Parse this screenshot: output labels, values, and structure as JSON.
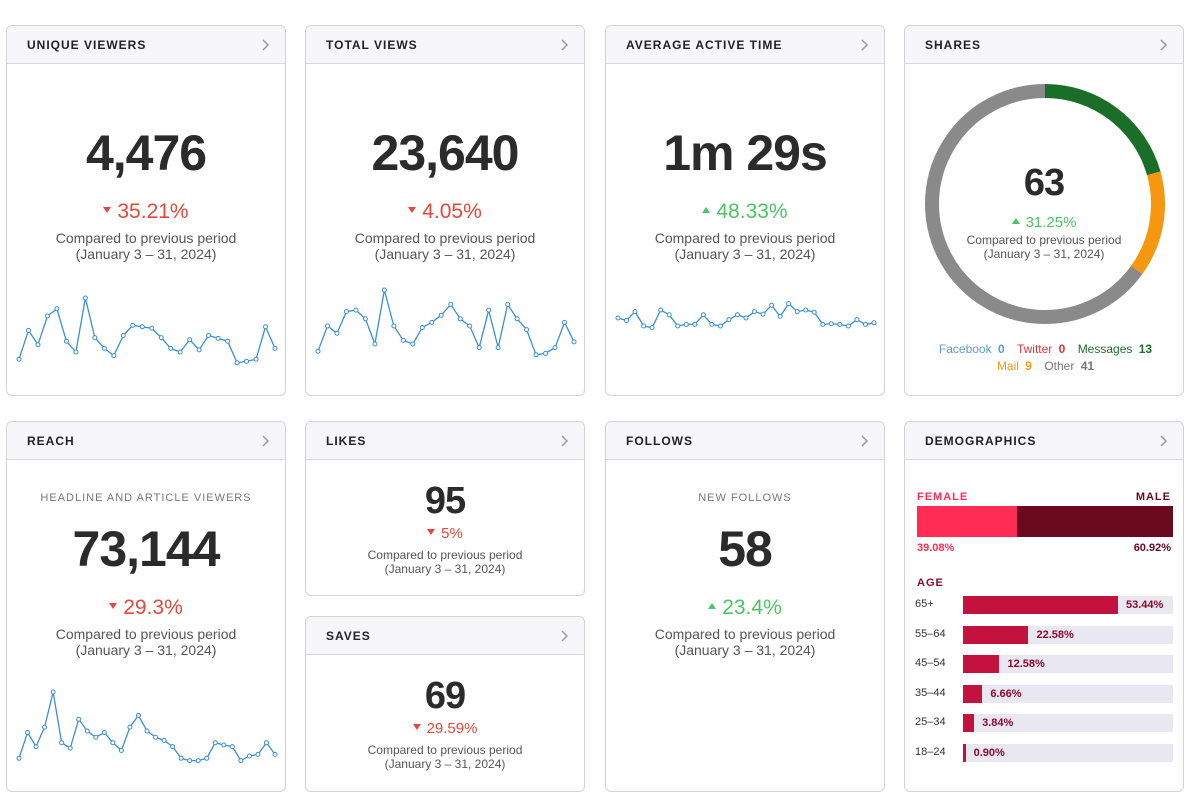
{
  "compare_line1": "Compared to previous period",
  "compare_line2": "(January 3 – 31, 2024)",
  "cards": {
    "unique_viewers": {
      "title": "UNIQUE VIEWERS",
      "value": "4,476",
      "change": "35.21%",
      "direction": "down",
      "spark": [
        0.15,
        0.55,
        0.35,
        0.75,
        0.85,
        0.4,
        0.25,
        1.0,
        0.45,
        0.3,
        0.2,
        0.48,
        0.62,
        0.6,
        0.58,
        0.45,
        0.3,
        0.25,
        0.42,
        0.28,
        0.48,
        0.44,
        0.4,
        0.1,
        0.12,
        0.15,
        0.6,
        0.3
      ]
    },
    "total_views": {
      "title": "TOTAL VIEWS",
      "value": "23,640",
      "change": "4.05%",
      "direction": "down",
      "spark": [
        0.15,
        0.5,
        0.4,
        0.7,
        0.72,
        0.6,
        0.25,
        1.0,
        0.5,
        0.3,
        0.25,
        0.48,
        0.55,
        0.65,
        0.8,
        0.6,
        0.5,
        0.2,
        0.72,
        0.2,
        0.8,
        0.6,
        0.45,
        0.1,
        0.12,
        0.2,
        0.55,
        0.28
      ]
    },
    "avg_time": {
      "title": "AVERAGE ACTIVE TIME",
      "value": "1m 29s",
      "change": "48.33%",
      "direction": "up",
      "spark": [
        0.5,
        0.42,
        0.7,
        0.25,
        0.2,
        0.75,
        0.6,
        0.25,
        0.3,
        0.3,
        0.6,
        0.3,
        0.25,
        0.45,
        0.6,
        0.5,
        0.7,
        0.62,
        0.9,
        0.55,
        0.95,
        0.7,
        0.75,
        0.68,
        0.3,
        0.32,
        0.3,
        0.25,
        0.45,
        0.3,
        0.35
      ]
    },
    "shares": {
      "title": "SHARES",
      "value": "63",
      "change": "31.25%",
      "direction": "up",
      "legend": [
        {
          "name": "Facebook",
          "count": "0",
          "color": "#5b9bd5"
        },
        {
          "name": "Twitter",
          "count": "0",
          "color": "#e0343a"
        },
        {
          "name": "Messages",
          "count": "13",
          "color": "#1e6e2a"
        },
        {
          "name": "Mail",
          "count": "9",
          "color": "#f39a12"
        },
        {
          "name": "Other",
          "count": "41",
          "color": "#777777"
        }
      ],
      "segments": [
        {
          "value": 13,
          "color": "#1b6e28"
        },
        {
          "value": 9,
          "color": "#f6980f"
        },
        {
          "value": 41,
          "color": "#8a8a8a"
        }
      ]
    },
    "reach": {
      "title": "REACH",
      "sublabel": "HEADLINE AND ARTICLE VIEWERS",
      "value": "73,144",
      "change": "29.3%",
      "direction": "down",
      "spark": [
        0.15,
        0.48,
        0.3,
        0.55,
        1.0,
        0.35,
        0.28,
        0.65,
        0.5,
        0.42,
        0.48,
        0.35,
        0.25,
        0.55,
        0.7,
        0.5,
        0.42,
        0.38,
        0.3,
        0.15,
        0.12,
        0.12,
        0.15,
        0.35,
        0.32,
        0.3,
        0.12,
        0.18,
        0.2,
        0.35,
        0.2
      ]
    },
    "likes": {
      "title": "LIKES",
      "value": "95",
      "change": "5%",
      "direction": "down"
    },
    "saves": {
      "title": "SAVES",
      "value": "69",
      "change": "29.59%",
      "direction": "down"
    },
    "follows": {
      "title": "FOLLOWS",
      "sublabel": "NEW FOLLOWS",
      "value": "58",
      "change": "23.4%",
      "direction": "up"
    },
    "demographics": {
      "title": "DEMOGRAPHICS",
      "female_label": "FEMALE",
      "male_label": "MALE",
      "female_pct": "39.08%",
      "male_pct": "60.92%",
      "female_fraction": 0.3908,
      "female_color": "#ff2d55",
      "male_color": "#6b0a1e",
      "age_label": "AGE",
      "ages": [
        {
          "range": "65+",
          "pct": "53.44%",
          "fraction": 0.5344
        },
        {
          "range": "55–64",
          "pct": "22.58%",
          "fraction": 0.2258
        },
        {
          "range": "45–54",
          "pct": "12.58%",
          "fraction": 0.1258
        },
        {
          "range": "35–44",
          "pct": "6.66%",
          "fraction": 0.0666
        },
        {
          "range": "25–34",
          "pct": "3.84%",
          "fraction": 0.0384
        },
        {
          "range": "18–24",
          "pct": "0.90%",
          "fraction": 0.009
        }
      ]
    }
  }
}
